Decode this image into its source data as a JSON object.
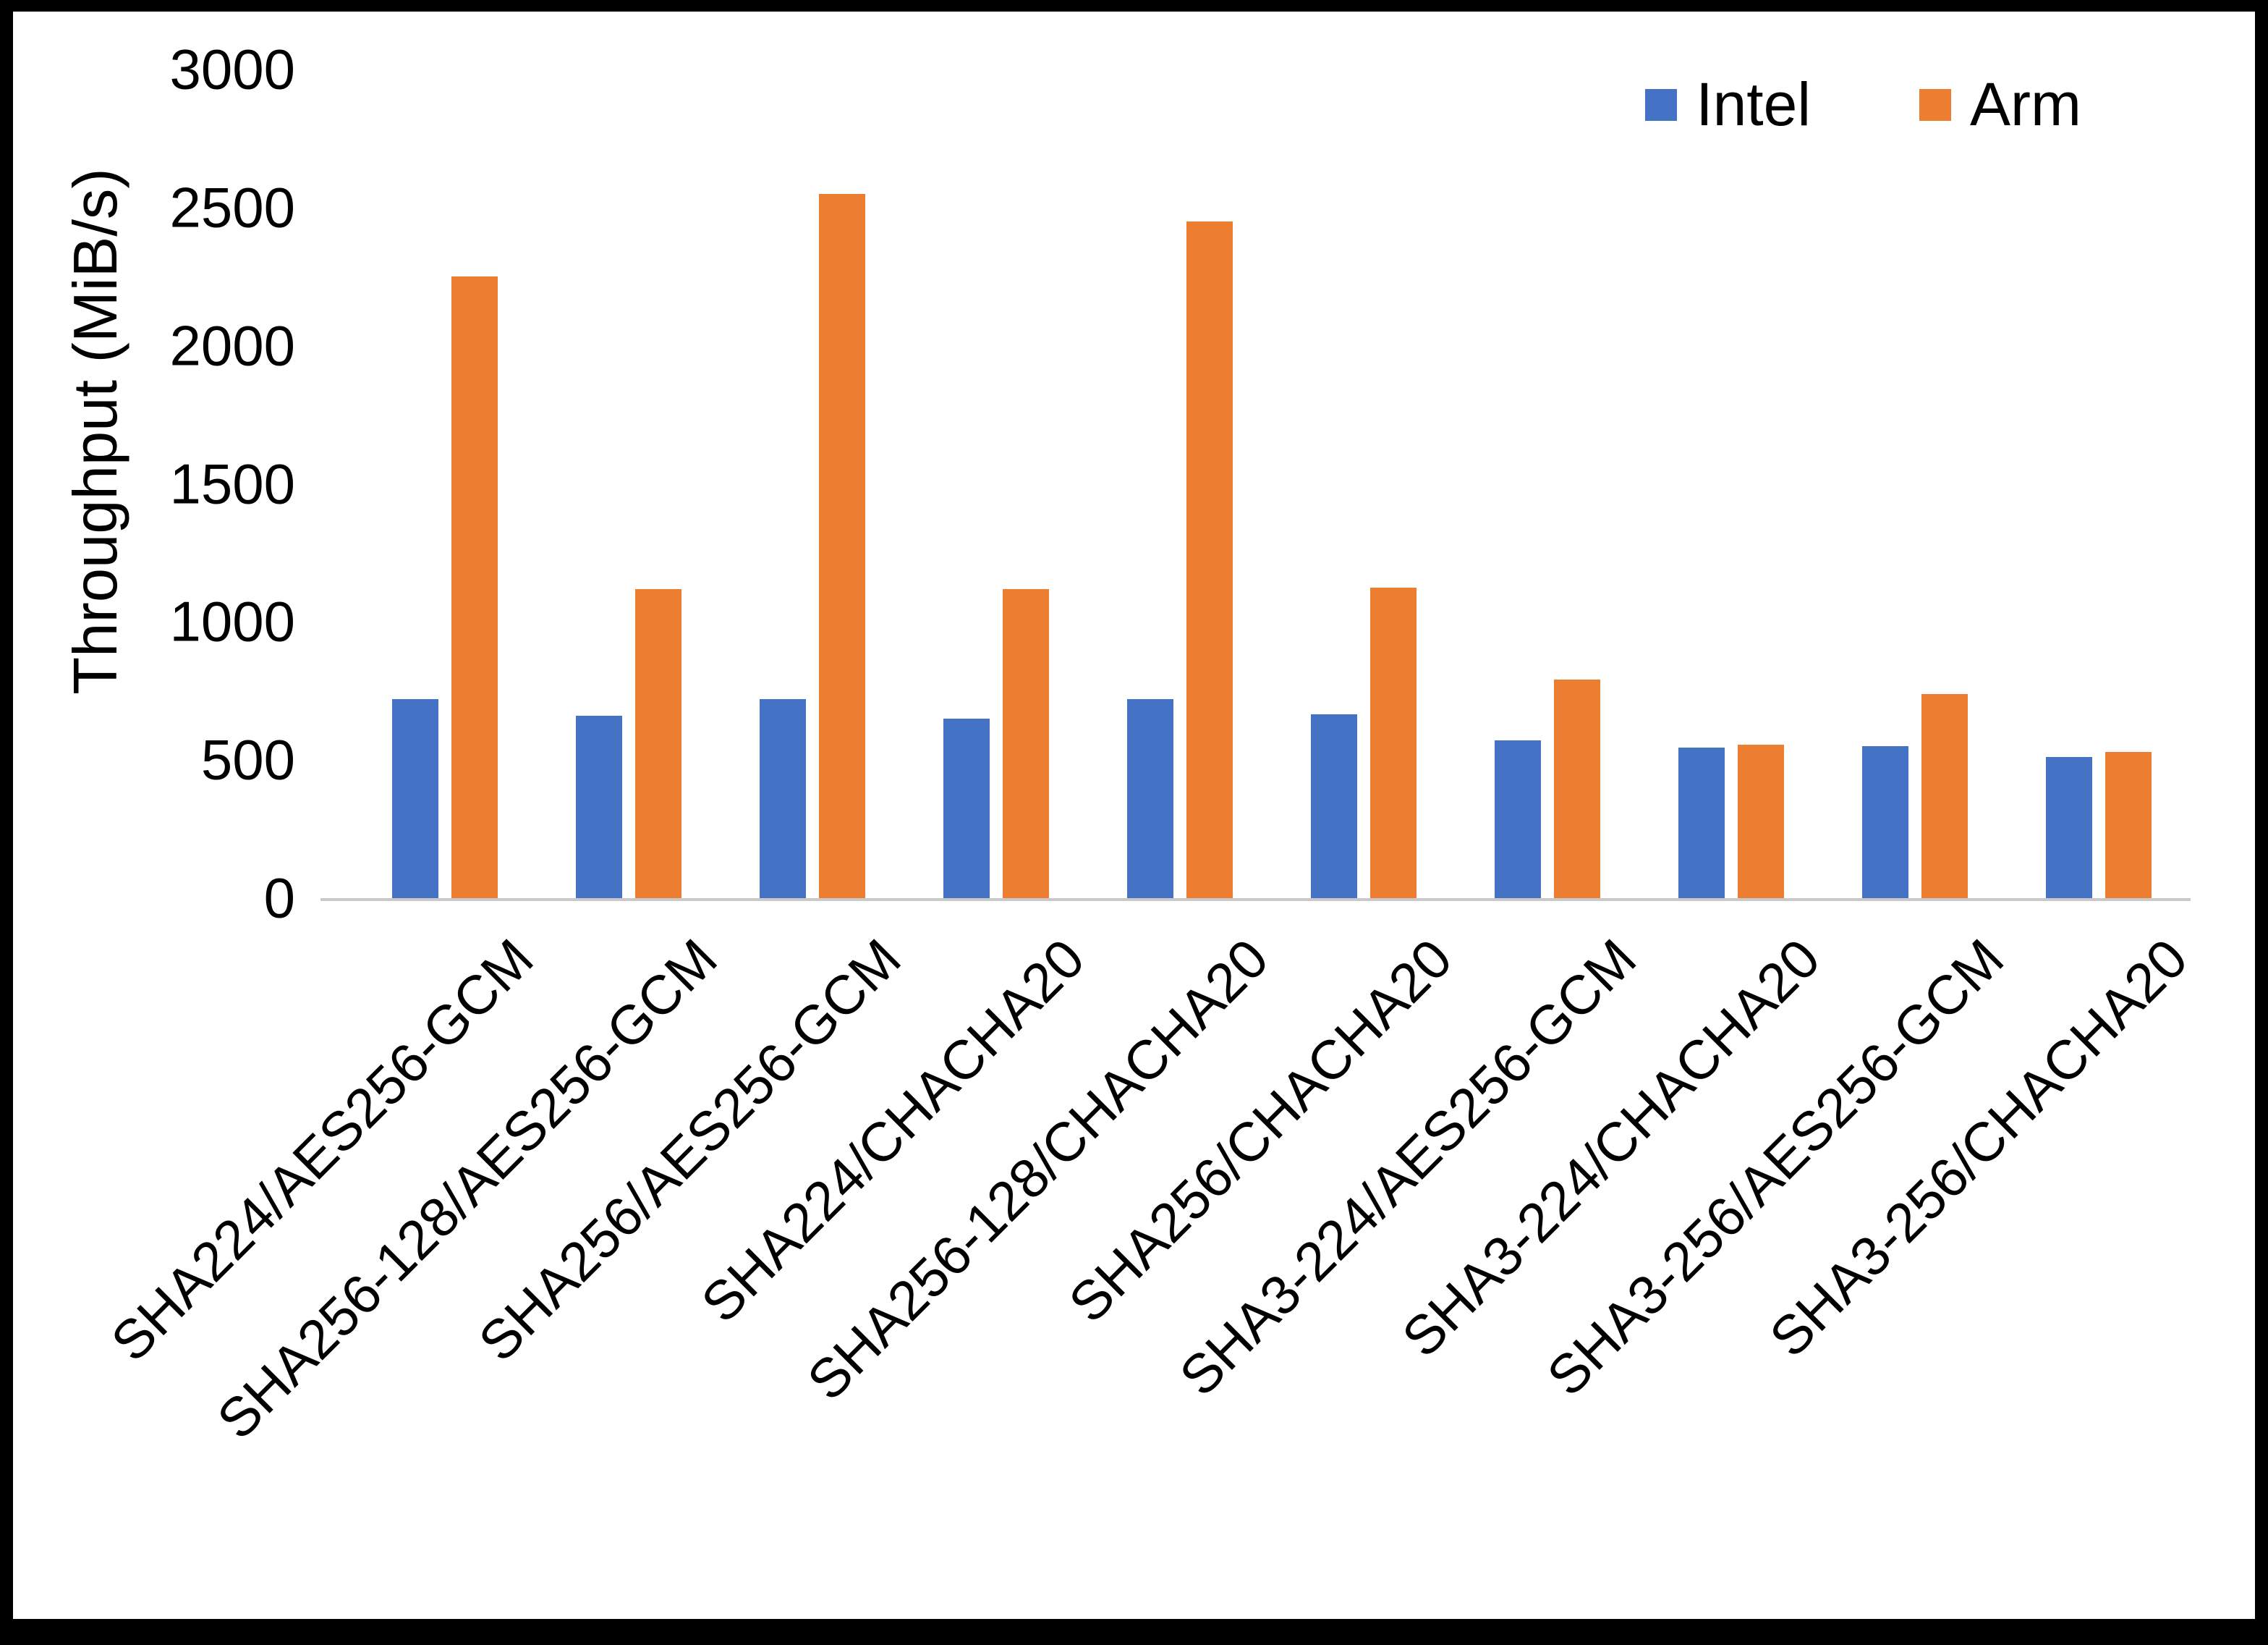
{
  "figure": {
    "background": "#ffffff",
    "frame_color": "#000000"
  },
  "chart_data": {
    "type": "bar",
    "title": "",
    "xlabel": "",
    "ylabel": "Throughput (MiB/s)",
    "ylim": [
      0,
      3000
    ],
    "yticks": [
      0,
      500,
      1000,
      1500,
      2000,
      2500,
      3000
    ],
    "grid": false,
    "legend_position": "top-right",
    "categories": [
      "SHA224/AES256-GCM",
      "SHA256-128/AES256-GCM",
      "SHA256/AES256-GCM",
      "SHA224/CHACHA20",
      "SHA256-128/CHACHA20",
      "SHA256/CHACHA20",
      "SHA3-224/AES256-GCM",
      "SHA3-224/CHACHA20",
      "SHA3-256/AES256-GCM",
      "SHA3-256/CHACHA20"
    ],
    "series": [
      {
        "name": "Intel",
        "color": "#4472C4",
        "values": [
          720,
          660,
          720,
          650,
          720,
          665,
          570,
          545,
          550,
          510
        ]
      },
      {
        "name": "Arm",
        "color": "#ED7D31",
        "values": [
          2250,
          1120,
          2550,
          1120,
          2450,
          1125,
          790,
          555,
          740,
          530
        ]
      }
    ]
  }
}
